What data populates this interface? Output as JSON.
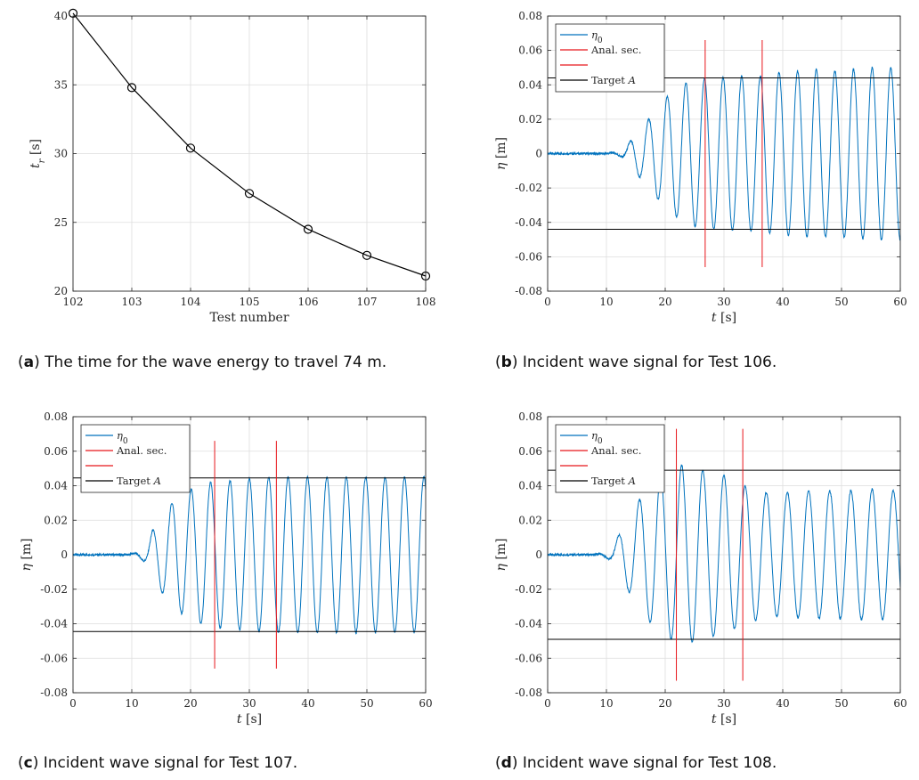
{
  "colors": {
    "signal": "#0072BD",
    "analysis": "#E8161B",
    "target": "#000000",
    "axis": "#262626",
    "grid": "#DDDDDD"
  },
  "captions": [
    {
      "letter": "a",
      "text": " The time for the wave energy to travel 74 m."
    },
    {
      "letter": "b",
      "text": " Incident wave signal for Test 106."
    },
    {
      "letter": "c",
      "text": " Incident wave signal for Test 107."
    },
    {
      "letter": "d",
      "text": " Incident wave signal for Test 108."
    }
  ],
  "chart_data": [
    {
      "panel": "a",
      "type": "line",
      "marker": "circle",
      "x": [
        102,
        103,
        104,
        105,
        106,
        107,
        108
      ],
      "y": [
        40.2,
        34.8,
        30.4,
        27.1,
        24.5,
        22.6,
        21.1
      ],
      "xlabel": "Test number",
      "ylabel_main": "t",
      "ylabel_sub": "r",
      "ylabel_unit": " [s]",
      "xlim": [
        102,
        108
      ],
      "ylim": [
        20,
        40
      ],
      "xticks": [
        102,
        103,
        104,
        105,
        106,
        107,
        108
      ],
      "yticks": [
        20,
        25,
        30,
        35,
        40
      ],
      "grid": true
    },
    {
      "panel": "b",
      "type": "line",
      "xlabel_main": "t",
      "xlabel_unit": " [s]",
      "ylabel_main": "η",
      "ylabel_unit": " [m]",
      "xlim": [
        0,
        60
      ],
      "ylim": [
        -0.08,
        0.08
      ],
      "xticks": [
        0,
        10,
        20,
        30,
        40,
        50,
        60
      ],
      "yticks": [
        -0.08,
        -0.06,
        -0.04,
        -0.02,
        0,
        0.02,
        0.04,
        0.06,
        0.08
      ],
      "ytick_labels": [
        "-0.08",
        "-0.06",
        "-0.04",
        "-0.02",
        "0",
        "0.02",
        "0.04",
        "0.06",
        "0.08"
      ],
      "grid": true,
      "legend": {
        "position": "top-left",
        "entries": [
          {
            "main": "η",
            "sub": "0",
            "color": "signal"
          },
          {
            "main": "Anal. sec.",
            "color": "analysis"
          },
          {
            "main": "",
            "color": "analysis"
          },
          {
            "main": "Target ",
            "italic": "A",
            "color": "target"
          }
        ]
      },
      "signal": {
        "arrival": 14,
        "period": 3.17,
        "amplitude": 0.045,
        "peaks_after_arrival": [
          0.007,
          0.02,
          0.033,
          0.041,
          0.044,
          0.044,
          0.045,
          0.045,
          0.047,
          0.048,
          0.049,
          0.048,
          0.049,
          0.05,
          0.05,
          0.05
        ],
        "end": 60
      },
      "analysis_section": {
        "x": [
          26.8,
          36.5
        ],
        "y_range": [
          -0.066,
          0.066
        ]
      },
      "target_amplitude": 0.044
    },
    {
      "panel": "c",
      "type": "line",
      "xlabel_main": "t",
      "xlabel_unit": " [s]",
      "ylabel_main": "η",
      "ylabel_unit": " [m]",
      "xlim": [
        0,
        60
      ],
      "ylim": [
        -0.08,
        0.08
      ],
      "xticks": [
        0,
        10,
        20,
        30,
        40,
        50,
        60
      ],
      "yticks": [
        -0.08,
        -0.06,
        -0.04,
        -0.02,
        0,
        0.02,
        0.04,
        0.06,
        0.08
      ],
      "ytick_labels": [
        "-0.08",
        "-0.06",
        "-0.04",
        "-0.02",
        "0",
        "0.02",
        "0.04",
        "0.06",
        "0.08"
      ],
      "grid": true,
      "legend": {
        "position": "top-left",
        "entries": [
          {
            "main": "η",
            "sub": "0",
            "color": "signal"
          },
          {
            "main": "Anal. sec.",
            "color": "analysis"
          },
          {
            "main": "",
            "color": "analysis"
          },
          {
            "main": "Target ",
            "italic": "A",
            "color": "target"
          }
        ]
      },
      "signal": {
        "arrival": 13.5,
        "period": 3.3,
        "amplitude": 0.045,
        "peaks_after_arrival": [
          0.014,
          0.03,
          0.038,
          0.042,
          0.043,
          0.044,
          0.045,
          0.045,
          0.045,
          0.045,
          0.045,
          0.045,
          0.045,
          0.045,
          0.045
        ],
        "end": 60
      },
      "analysis_section": {
        "x": [
          24.1,
          34.6
        ],
        "y_range": [
          -0.066,
          0.066
        ]
      },
      "target_amplitude": 0.0445
    },
    {
      "panel": "d",
      "type": "line",
      "xlabel_main": "t",
      "xlabel_unit": " [s]",
      "ylabel_main": "η",
      "ylabel_unit": " [m]",
      "xlim": [
        0,
        60
      ],
      "ylim": [
        -0.08,
        0.08
      ],
      "xticks": [
        0,
        10,
        20,
        30,
        40,
        50,
        60
      ],
      "yticks": [
        -0.08,
        -0.06,
        -0.04,
        -0.02,
        0,
        0.02,
        0.04,
        0.06,
        0.08
      ],
      "ytick_labels": [
        "-0.08",
        "-0.06",
        "-0.04",
        "-0.02",
        "0",
        "0.02",
        "0.04",
        "0.06",
        "0.08"
      ],
      "grid": true,
      "legend": {
        "position": "top-left",
        "entries": [
          {
            "main": "η",
            "sub": "0",
            "color": "signal"
          },
          {
            "main": "Anal. sec.",
            "color": "analysis"
          },
          {
            "main": "",
            "color": "analysis"
          },
          {
            "main": "Target ",
            "italic": "A",
            "color": "target"
          }
        ]
      },
      "signal": {
        "arrival": 12,
        "period": 3.6,
        "amplitude": 0.045,
        "peaks_after_arrival": [
          0.011,
          0.032,
          0.046,
          0.052,
          0.049,
          0.046,
          0.04,
          0.036,
          0.036,
          0.037,
          0.037,
          0.037,
          0.038,
          0.037
        ],
        "end": 60
      },
      "analysis_section": {
        "x": [
          21.9,
          33.2
        ],
        "y_range": [
          -0.073,
          0.073
        ]
      },
      "target_amplitude": 0.049
    }
  ]
}
